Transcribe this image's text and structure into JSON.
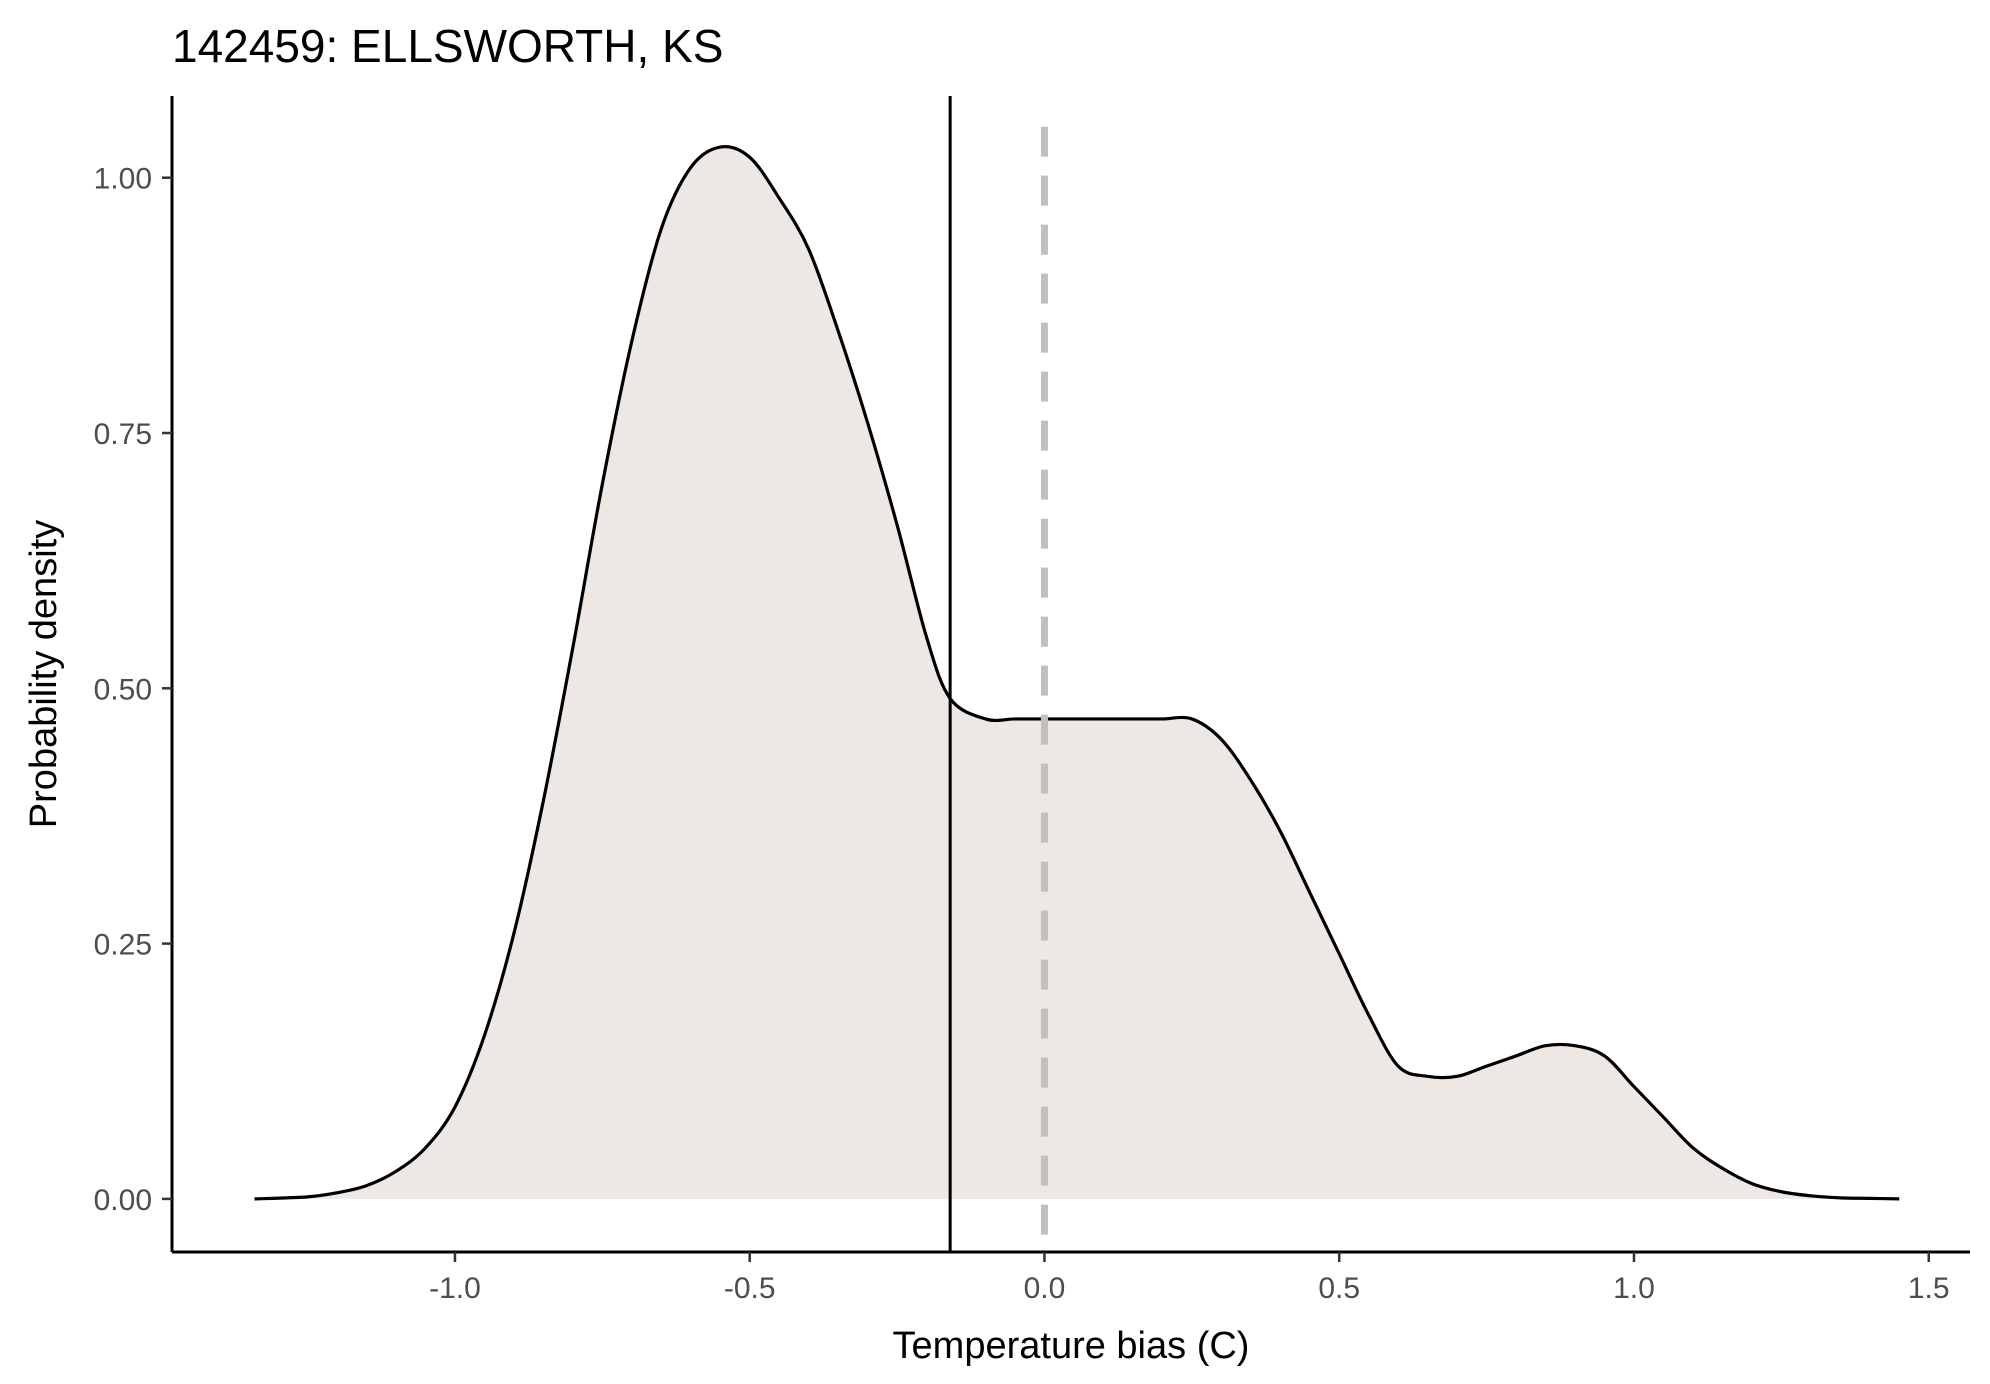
{
  "chart_data": {
    "type": "area",
    "title": "142459: ELLSWORTH, KS",
    "xlabel": "Temperature bias (C)",
    "ylabel": "Probability density",
    "xlim": [
      -1.48,
      1.57
    ],
    "ylim": [
      -0.052,
      1.08
    ],
    "xticks": [
      -1.0,
      -0.5,
      0.0,
      0.5,
      1.0,
      1.5
    ],
    "xtick_labels": [
      "-1.0",
      "-0.5",
      "0.0",
      "0.5",
      "1.0",
      "1.5"
    ],
    "yticks": [
      0.0,
      0.25,
      0.5,
      0.75,
      1.0
    ],
    "ytick_labels": [
      "0.00",
      "0.25",
      "0.50",
      "0.75",
      "1.00"
    ],
    "grid": false,
    "series": [
      {
        "x": [
          -1.34,
          -1.25,
          -1.2,
          -1.15,
          -1.1,
          -1.05,
          -1.0,
          -0.95,
          -0.9,
          -0.85,
          -0.8,
          -0.75,
          -0.7,
          -0.65,
          -0.6,
          -0.55,
          -0.5,
          -0.45,
          -0.4,
          -0.35,
          -0.3,
          -0.25,
          -0.2,
          -0.16,
          -0.1,
          -0.05,
          0.0,
          0.05,
          0.1,
          0.15,
          0.2,
          0.25,
          0.3,
          0.35,
          0.4,
          0.45,
          0.5,
          0.55,
          0.6,
          0.65,
          0.7,
          0.75,
          0.8,
          0.85,
          0.9,
          0.95,
          1.0,
          1.05,
          1.1,
          1.15,
          1.2,
          1.25,
          1.3,
          1.35,
          1.4,
          1.45
        ],
        "values": [
          0.0,
          0.002,
          0.006,
          0.013,
          0.027,
          0.05,
          0.09,
          0.16,
          0.26,
          0.39,
          0.54,
          0.7,
          0.84,
          0.95,
          1.01,
          1.03,
          1.02,
          0.98,
          0.93,
          0.85,
          0.76,
          0.66,
          0.55,
          0.49,
          0.47,
          0.47,
          0.47,
          0.47,
          0.47,
          0.47,
          0.47,
          0.47,
          0.45,
          0.41,
          0.36,
          0.3,
          0.24,
          0.18,
          0.13,
          0.12,
          0.12,
          0.13,
          0.14,
          0.15,
          0.15,
          0.14,
          0.11,
          0.08,
          0.05,
          0.03,
          0.015,
          0.007,
          0.003,
          0.001,
          0.0005,
          0.0
        ]
      }
    ],
    "reference_lines": [
      {
        "x": -0.16,
        "style": "solid",
        "color": "#000000"
      },
      {
        "x": 0.0,
        "style": "dashed",
        "color": "#c0c0c0"
      }
    ],
    "fill_color": "#ede8e4",
    "line_color": "#000000"
  }
}
